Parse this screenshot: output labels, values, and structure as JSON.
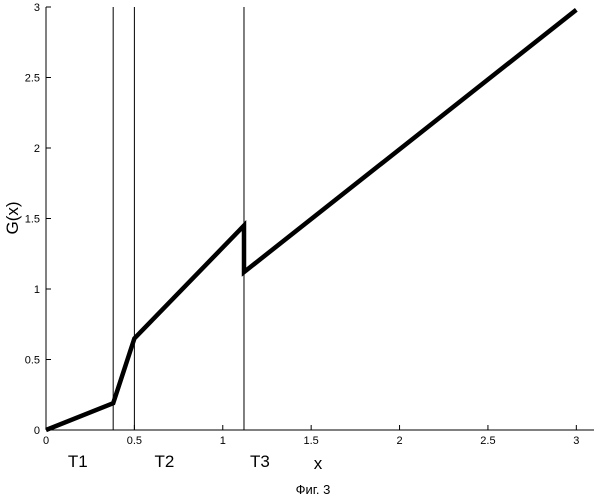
{
  "chart_data": {
    "type": "line",
    "title": "",
    "xlabel": "x",
    "ylabel": "G(x)",
    "xlim": [
      0,
      3.1
    ],
    "ylim": [
      0,
      3
    ],
    "xticks": [
      {
        "value": 0,
        "label": "0"
      },
      {
        "value": 0.5,
        "label": "0.5"
      },
      {
        "value": 1,
        "label": "1"
      },
      {
        "value": 1.5,
        "label": "1.5"
      },
      {
        "value": 2,
        "label": "2"
      },
      {
        "value": 2.5,
        "label": "2.5"
      },
      {
        "value": 3,
        "label": "3"
      }
    ],
    "yticks": [
      {
        "value": 0,
        "label": "0"
      },
      {
        "value": 0.5,
        "label": "0.5"
      },
      {
        "value": 1,
        "label": "1"
      },
      {
        "value": 1.5,
        "label": "1.5"
      },
      {
        "value": 2,
        "label": "2"
      },
      {
        "value": 2.5,
        "label": "2.5"
      },
      {
        "value": 3,
        "label": "3"
      }
    ],
    "grid": false,
    "series": [
      {
        "x": [
          0,
          0.38,
          0.5,
          1.12,
          1.12,
          3.0
        ],
        "y": [
          0,
          0.19,
          0.65,
          1.45,
          1.12,
          2.98
        ]
      }
    ],
    "vertical_lines": [
      0.38,
      0.5,
      1.12
    ],
    "threshold_labels": [
      {
        "text": "T1",
        "x": 0.18
      },
      {
        "text": "T2",
        "x": 0.67
      },
      {
        "text": "T3",
        "x": 1.21
      }
    ]
  },
  "caption": "Фиг. 3"
}
